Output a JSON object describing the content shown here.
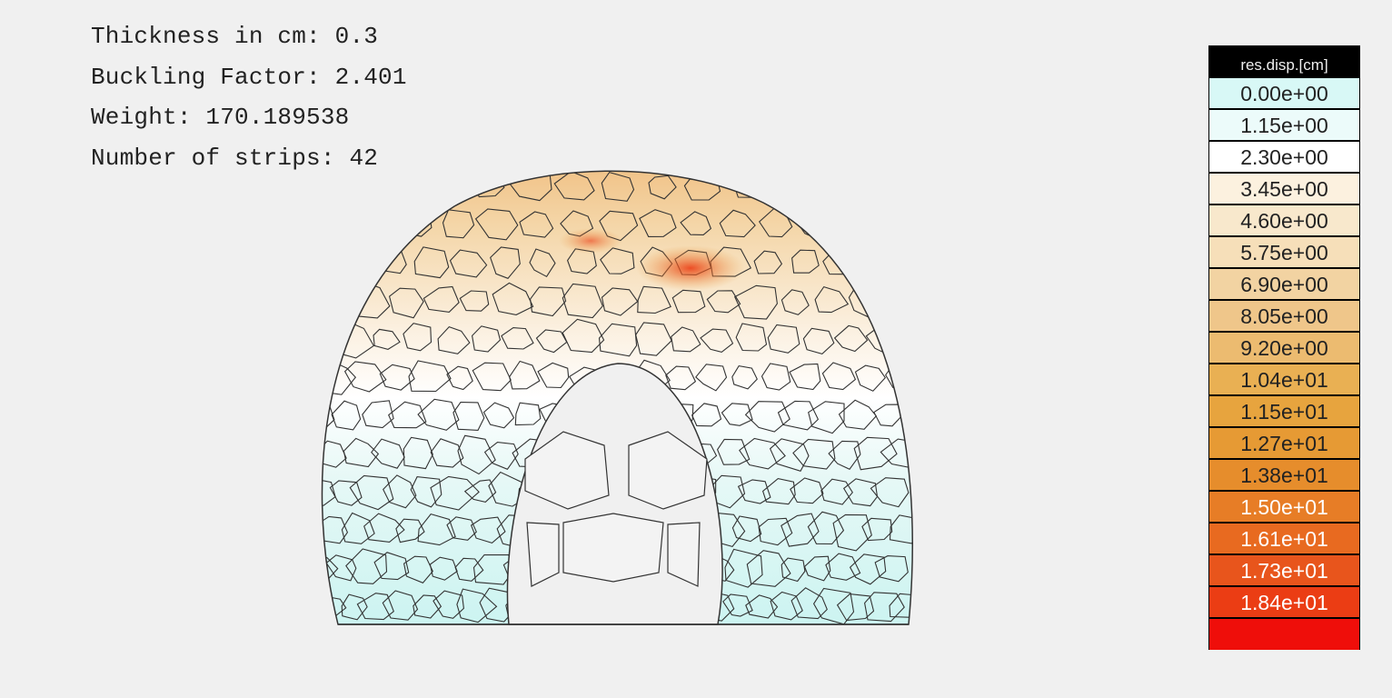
{
  "info": {
    "thickness": "Thickness in cm: 0.3",
    "buckling": "Buckling Factor: 2.401",
    "weight": "Weight: 170.189538",
    "strips": "Number of strips: 42"
  },
  "legend": {
    "title": "res.disp.[cm]",
    "entries": [
      {
        "label": "0.00e+00",
        "color": "#d8f8f6"
      },
      {
        "label": "1.15e+00",
        "color": "#ecfbfa"
      },
      {
        "label": "2.30e+00",
        "color": "#ffffff"
      },
      {
        "label": "3.45e+00",
        "color": "#fcf1df"
      },
      {
        "label": "4.60e+00",
        "color": "#f8e8cc"
      },
      {
        "label": "5.75e+00",
        "color": "#f6dfb9"
      },
      {
        "label": "6.90e+00",
        "color": "#f2d3a2"
      },
      {
        "label": "8.05e+00",
        "color": "#efc68a"
      },
      {
        "label": "9.20e+00",
        "color": "#ecbb70"
      },
      {
        "label": "1.04e+01",
        "color": "#e9b053"
      },
      {
        "label": "1.15e+01",
        "color": "#e7a43e"
      },
      {
        "label": "1.27e+01",
        "color": "#e69a34"
      },
      {
        "label": "1.38e+01",
        "color": "#e68d2c"
      },
      {
        "label": "1.50e+01",
        "color": "#e77d26"
      },
      {
        "label": "1.61e+01",
        "color": "#e86a20"
      },
      {
        "label": "1.73e+01",
        "color": "#e8551c"
      },
      {
        "label": "1.84e+01",
        "color": "#eb3d14"
      },
      {
        "label": "",
        "color": "#ef0e0a"
      }
    ]
  }
}
